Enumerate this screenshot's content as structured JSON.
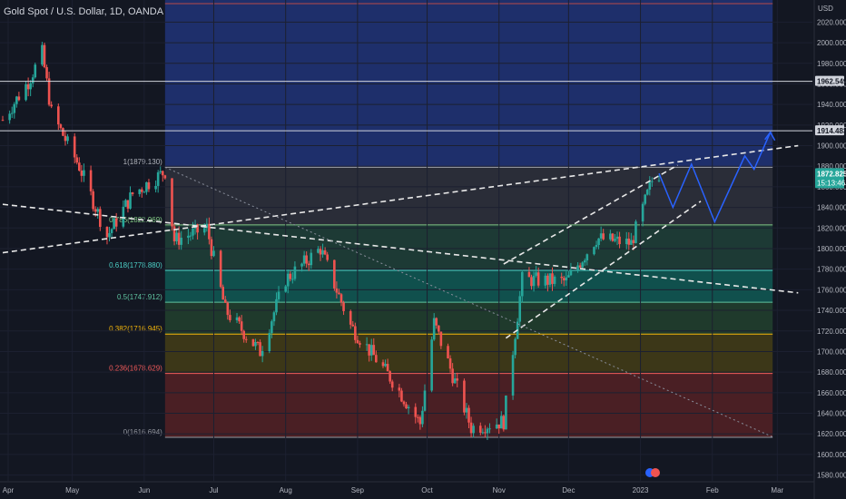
{
  "header": {
    "title": "Gold Spot / U.S. Dollar, 1D, OANDA"
  },
  "axis": {
    "currency_label": "USD",
    "y_ticks": [
      "2020.000",
      "2000.000",
      "1980.000",
      "1960.000",
      "1940.000",
      "1920.000",
      "1900.000",
      "1880.000",
      "1860.000",
      "1840.000",
      "1820.000",
      "1800.000",
      "1780.000",
      "1760.000",
      "1740.000",
      "1720.000",
      "1700.000",
      "1680.000",
      "1660.000",
      "1640.000",
      "1620.000",
      "1600.000",
      "1580.000"
    ],
    "x_ticks": [
      "Apr",
      "May",
      "Jun",
      "Jul",
      "Aug",
      "Sep",
      "Oct",
      "Nov",
      "Dec",
      "2023",
      "Feb",
      "Mar"
    ]
  },
  "price_tags": {
    "level_a": "1962.549",
    "level_b": "1914.483",
    "last_price": "1872.825",
    "countdown": "15:13:46"
  },
  "fib_labels": [
    {
      "level": "1",
      "price": "1879.130",
      "text": "1(1879.130)",
      "color": "#b2b5be"
    },
    {
      "level": "0.786",
      "price": "1822.969",
      "text": "0.786(1822.969)",
      "color": "#81c784"
    },
    {
      "level": "0.618",
      "price": "1778.880",
      "text": "0.618(1778.880)",
      "color": "#4dd0c8"
    },
    {
      "level": "0.5",
      "price": "1747.912",
      "text": "0.5(1747.912)",
      "color": "#5fc3a0"
    },
    {
      "level": "0.382",
      "price": "1716.945",
      "text": "0.382(1716.945)",
      "color": "#f5b70a"
    },
    {
      "level": "0.236",
      "price": "1678.629",
      "text": "0.236(1678.629)",
      "color": "#f05a5a"
    },
    {
      "level": "0",
      "price": "1616.694",
      "text": "0(1616.694)",
      "color": "#9598a1"
    }
  ],
  "colors": {
    "background": "#131722",
    "up": "#26a69a",
    "down": "#ef5350",
    "projection": "#2962ff",
    "band_blue": "#1e2f6b",
    "band_grey": "#2a2d38",
    "band_green": "#1d3a35",
    "band_teal": "#10504d",
    "band_olive": "#1f3a2c",
    "band_orange": "#3c3718",
    "band_red": "#4a1f24"
  },
  "chart_data": {
    "type": "candlestick",
    "title": "Gold Spot / U.S. Dollar, 1D, OANDA",
    "ylabel": "USD",
    "ylim": [
      1573,
      2045
    ],
    "x_tick_labels": [
      "Apr",
      "May",
      "Jun",
      "Jul",
      "Aug",
      "Sep",
      "Oct",
      "Nov",
      "Dec",
      "2023",
      "Feb",
      "Mar"
    ],
    "close_path": [
      {
        "date": "2022-04-01",
        "close": 1925
      },
      {
        "date": "2022-04-12",
        "close": 1962
      },
      {
        "date": "2022-04-18",
        "close": 1990
      },
      {
        "date": "2022-04-22",
        "close": 1932
      },
      {
        "date": "2022-05-04",
        "close": 1880
      },
      {
        "date": "2022-05-16",
        "close": 1812
      },
      {
        "date": "2022-05-27",
        "close": 1853
      },
      {
        "date": "2022-06-10",
        "close": 1875
      },
      {
        "date": "2022-06-14",
        "close": 1808
      },
      {
        "date": "2022-06-28",
        "close": 1820
      },
      {
        "date": "2022-07-06",
        "close": 1740
      },
      {
        "date": "2022-07-21",
        "close": 1700
      },
      {
        "date": "2022-08-01",
        "close": 1770
      },
      {
        "date": "2022-08-16",
        "close": 1800
      },
      {
        "date": "2022-08-29",
        "close": 1725
      },
      {
        "date": "2022-09-16",
        "close": 1672
      },
      {
        "date": "2022-09-28",
        "close": 1630
      },
      {
        "date": "2022-10-04",
        "close": 1728
      },
      {
        "date": "2022-10-20",
        "close": 1626
      },
      {
        "date": "2022-11-03",
        "close": 1632
      },
      {
        "date": "2022-11-11",
        "close": 1770
      },
      {
        "date": "2022-11-30",
        "close": 1768
      },
      {
        "date": "2022-12-13",
        "close": 1810
      },
      {
        "date": "2022-12-28",
        "close": 1805
      },
      {
        "date": "2023-01-06",
        "close": 1866
      },
      {
        "date": "2023-01-09",
        "close": 1872.825
      }
    ],
    "horizontal_levels": [
      1962.549,
      1914.483
    ],
    "fibonacci": {
      "high": 1879.13,
      "low": 1616.694,
      "levels": [
        1,
        0.786,
        0.618,
        0.5,
        0.382,
        0.236,
        0
      ],
      "prices": [
        1879.13,
        1822.969,
        1778.88,
        1747.912,
        1716.945,
        1678.629,
        1616.694
      ]
    },
    "projection_path": [
      {
        "date": "2023-01-09",
        "price": 1873
      },
      {
        "date": "2023-01-15",
        "price": 1840
      },
      {
        "date": "2023-01-23",
        "price": 1882
      },
      {
        "date": "2023-02-02",
        "price": 1826
      },
      {
        "date": "2023-02-15",
        "price": 1890
      },
      {
        "date": "2023-02-19",
        "price": 1877
      },
      {
        "date": "2023-02-26",
        "price": 1913
      }
    ],
    "trendlines": [
      {
        "name": "rising",
        "from": {
          "date": "2022-04-01",
          "price": 1796
        },
        "to": {
          "date": "2023-03-10",
          "price": 1900
        }
      },
      {
        "name": "falling",
        "from": {
          "date": "2022-04-01",
          "price": 1843
        },
        "to": {
          "date": "2023-03-10",
          "price": 1757
        }
      },
      {
        "name": "channel_support",
        "from": {
          "date": "2022-11-04",
          "price": 1713
        },
        "to": {
          "date": "2023-01-27",
          "price": 1846
        }
      },
      {
        "name": "channel_resistance",
        "from": {
          "date": "2022-11-03",
          "price": 1785
        },
        "to": {
          "date": "2023-01-17",
          "price": 1881
        }
      },
      {
        "name": "fib_diagonal",
        "from": {
          "date": "2022-06-10",
          "price": 1879
        },
        "to": {
          "date": "2023-02-27",
          "price": 1617
        }
      }
    ],
    "last_price": 1872.825
  }
}
